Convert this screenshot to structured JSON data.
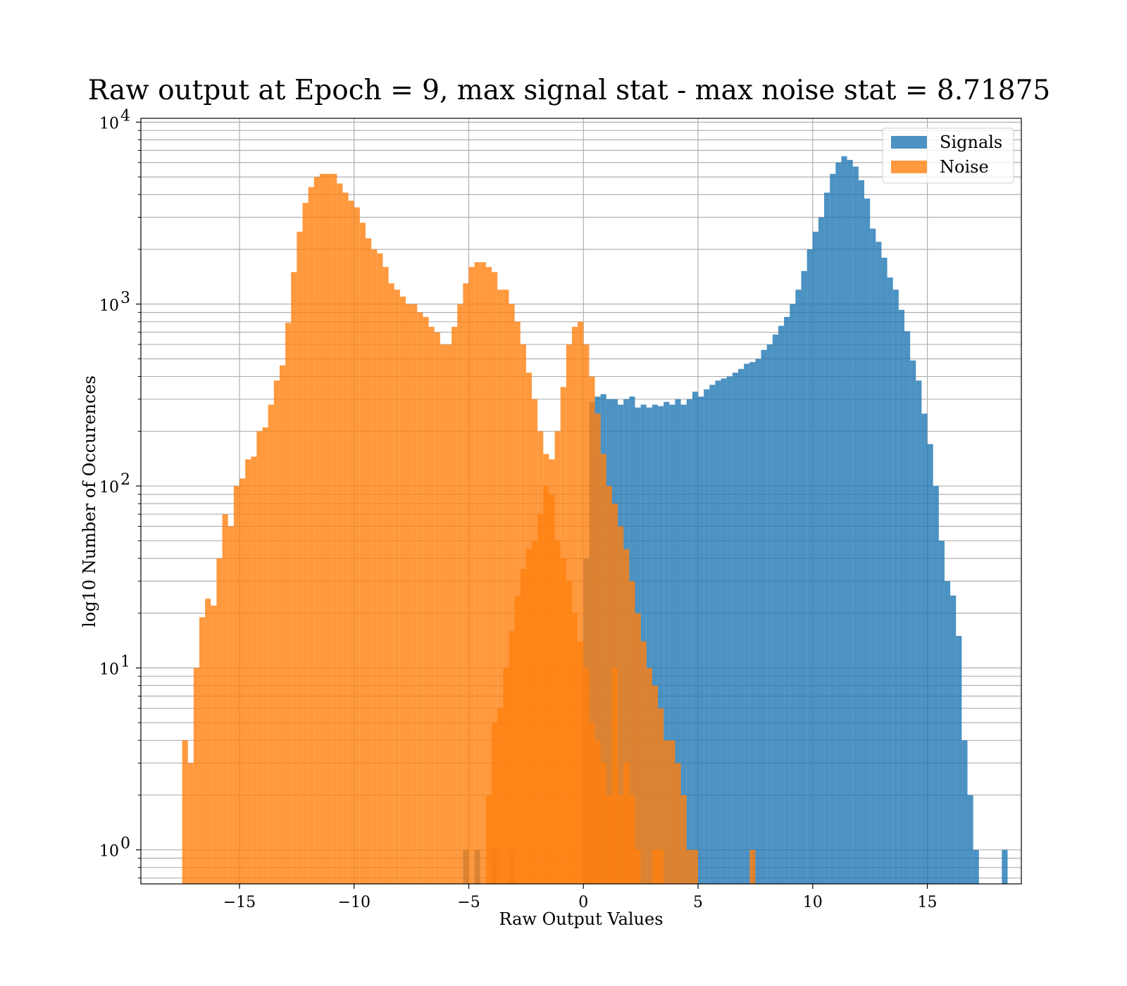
{
  "chart_data": {
    "type": "histogram",
    "title": "Raw output at Epoch = 9, max signal stat - max noise stat = 8.71875",
    "xlabel": "Raw Output Values",
    "ylabel": "log10 Number of Occurences",
    "xlim": [
      -19.3,
      19.1
    ],
    "ylim": [
      0.65,
      10500
    ],
    "yscale": "log",
    "x_ticks": [
      -15,
      -10,
      -5,
      0,
      5,
      10,
      15
    ],
    "x_tick_labels": [
      "−15",
      "−10",
      "−5",
      "0",
      "5",
      "10",
      "15"
    ],
    "y_ticks": [
      {
        "value": 1,
        "base": "10",
        "exp": "0"
      },
      {
        "value": 10,
        "base": "10",
        "exp": "1"
      },
      {
        "value": 100,
        "base": "10",
        "exp": "2"
      },
      {
        "value": 1000,
        "base": "10",
        "exp": "3"
      },
      {
        "value": 10000,
        "base": "10",
        "exp": "4"
      }
    ],
    "grid": true,
    "legend_position": "top-right",
    "series": [
      {
        "name": "Signals",
        "color": "#1f77b4",
        "alpha": 0.8,
        "bin_start": -5.25,
        "bin_width": 0.25,
        "counts": [
          1,
          0,
          1,
          0,
          0,
          1,
          0,
          0,
          1,
          0,
          0,
          0,
          0,
          0,
          0,
          0,
          0,
          0,
          0,
          0,
          0,
          40,
          290,
          310,
          320,
          300,
          300,
          280,
          300,
          310,
          270,
          280,
          270,
          280,
          275,
          290,
          280,
          300,
          280,
          300,
          330,
          310,
          340,
          360,
          380,
          390,
          400,
          420,
          440,
          470,
          480,
          500,
          560,
          600,
          680,
          760,
          850,
          1000,
          1200,
          1520,
          2000,
          2500,
          3000,
          4100,
          5200,
          6000,
          6500,
          6200,
          5700,
          4800,
          3800,
          2600,
          2200,
          1800,
          1400,
          1200,
          930,
          710,
          490,
          380,
          250,
          170,
          100,
          50,
          30,
          25,
          15,
          4,
          2,
          1,
          0,
          0,
          0,
          0,
          1
        ]
      },
      {
        "name": "Noise",
        "color": "#ff7f0e",
        "alpha": 0.8,
        "bin_start": -17.5,
        "bin_width": 0.25,
        "counts": [
          4,
          3,
          10,
          19,
          24,
          22,
          40,
          70,
          60,
          100,
          110,
          140,
          145,
          200,
          210,
          280,
          380,
          460,
          790,
          1500,
          2500,
          3600,
          4400,
          5000,
          5200,
          5200,
          5200,
          4600,
          4100,
          3700,
          3400,
          2800,
          2300,
          2000,
          1900,
          1600,
          1300,
          1200,
          1100,
          1000,
          1000,
          900,
          850,
          750,
          700,
          600,
          600,
          750,
          1000,
          1300,
          1600,
          1700,
          1700,
          1600,
          1500,
          1200,
          1200,
          1000,
          800,
          600,
          420,
          300,
          200,
          150,
          90,
          50,
          40,
          30,
          20,
          14,
          10,
          5,
          4,
          3,
          2,
          10,
          2,
          3,
          2,
          1,
          0,
          0,
          1,
          1,
          0,
          0,
          0,
          0,
          0,
          0,
          0,
          0,
          0,
          0,
          0,
          0,
          0,
          0,
          0,
          1
        ]
      },
      {
        "name": "",
        "color": "#ff7f0e",
        "alpha": 0.8,
        "bin_start": -5.0,
        "bin_width": 0.25,
        "counts": [
          0,
          0,
          0,
          2,
          5,
          6,
          10,
          16,
          25,
          35,
          45,
          50,
          70,
          100,
          140,
          200,
          350,
          600,
          750,
          800,
          600,
          400,
          250,
          150,
          100,
          80,
          60,
          45,
          30,
          20,
          14,
          10,
          8,
          6,
          4,
          4,
          3,
          2,
          1,
          1
        ]
      }
    ]
  },
  "legend": {
    "items": [
      {
        "label": "Signals",
        "color": "#1f77b4"
      },
      {
        "label": "Noise",
        "color": "#ff7f0e"
      }
    ]
  }
}
